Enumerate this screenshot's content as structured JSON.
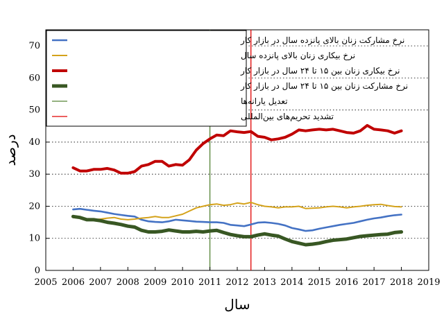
{
  "chart_data": {
    "type": "line",
    "xlabel": "سال",
    "ylabel": "درصد",
    "xlim": [
      2005,
      2019
    ],
    "ylim": [
      0,
      75
    ],
    "x_ticks": [
      2005,
      2006,
      2007,
      2008,
      2009,
      2010,
      2011,
      2012,
      2013,
      2014,
      2015,
      2016,
      2017,
      2018,
      2019
    ],
    "y_ticks": [
      0,
      10,
      20,
      30,
      40,
      50,
      60,
      70
    ],
    "grid": "horizontal-dotted",
    "legend_position": "top-left",
    "series": [
      {
        "name": "نرخ مشارکت زنان بالای پانزده سال در بازار کار",
        "color": "#4472c4",
        "x": [
          2006.0,
          2006.25,
          2006.5,
          2006.75,
          2007.0,
          2007.25,
          2007.5,
          2007.75,
          2008.0,
          2008.25,
          2008.5,
          2008.75,
          2009.0,
          2009.25,
          2009.5,
          2009.75,
          2010.0,
          2010.25,
          2010.5,
          2010.75,
          2011.0,
          2011.25,
          2011.5,
          2011.75,
          2012.0,
          2012.25,
          2012.5,
          2012.75,
          2013.0,
          2013.25,
          2013.5,
          2013.75,
          2014.0,
          2014.25,
          2014.5,
          2014.75,
          2015.0,
          2015.25,
          2015.5,
          2015.75,
          2016.0,
          2016.25,
          2016.5,
          2016.75,
          2017.0,
          2017.25,
          2017.5,
          2017.75,
          2018.0
        ],
        "values": [
          19.0,
          19.2,
          18.9,
          18.6,
          18.4,
          18.0,
          17.6,
          17.3,
          17.0,
          16.8,
          15.8,
          15.3,
          15.1,
          15.0,
          15.3,
          15.8,
          15.6,
          15.4,
          15.2,
          15.1,
          15.0,
          15.0,
          14.8,
          14.2,
          14.0,
          13.8,
          14.3,
          14.9,
          15.0,
          14.8,
          14.5,
          14.0,
          13.2,
          12.8,
          12.3,
          12.5,
          13.0,
          13.4,
          13.8,
          14.2,
          14.5,
          14.8,
          15.3,
          15.8,
          16.2,
          16.5,
          16.9,
          17.2,
          17.4
        ]
      },
      {
        "name": "نرخ بیکاری زنان بالای پانزده سال",
        "color": "#d4a21a",
        "x": [
          2006.0,
          2006.25,
          2006.5,
          2006.75,
          2007.0,
          2007.25,
          2007.5,
          2007.75,
          2008.0,
          2008.25,
          2008.5,
          2008.75,
          2009.0,
          2009.25,
          2009.5,
          2009.75,
          2010.0,
          2010.25,
          2010.5,
          2010.75,
          2011.0,
          2011.25,
          2011.5,
          2011.75,
          2012.0,
          2012.25,
          2012.5,
          2012.75,
          2013.0,
          2013.25,
          2013.5,
          2013.75,
          2014.0,
          2014.25,
          2014.5,
          2014.75,
          2015.0,
          2015.25,
          2015.5,
          2015.75,
          2016.0,
          2016.25,
          2016.5,
          2016.75,
          2017.0,
          2017.25,
          2017.5,
          2017.75,
          2018.0
        ],
        "values": [
          16.5,
          16.3,
          16.0,
          15.8,
          16.0,
          16.3,
          16.5,
          16.0,
          15.8,
          16.0,
          16.3,
          16.5,
          16.8,
          16.5,
          16.5,
          17.0,
          17.5,
          18.5,
          19.5,
          20.0,
          20.5,
          20.7,
          20.3,
          20.5,
          21.0,
          20.7,
          21.2,
          20.5,
          20.0,
          19.8,
          19.5,
          19.8,
          19.8,
          20.0,
          19.3,
          19.4,
          19.5,
          19.8,
          20.0,
          19.8,
          19.5,
          19.8,
          20.0,
          20.3,
          20.5,
          20.6,
          20.2,
          19.9,
          19.8
        ]
      },
      {
        "name": "نرخ بیکاری زنان بین ۱۵ تا ۲۴ سال در بازار کار",
        "color": "#c00000",
        "x": [
          2006.0,
          2006.25,
          2006.5,
          2006.75,
          2007.0,
          2007.25,
          2007.5,
          2007.75,
          2008.0,
          2008.25,
          2008.5,
          2008.75,
          2009.0,
          2009.25,
          2009.5,
          2009.75,
          2010.0,
          2010.25,
          2010.5,
          2010.75,
          2011.0,
          2011.25,
          2011.5,
          2011.75,
          2012.0,
          2012.25,
          2012.5,
          2012.75,
          2013.0,
          2013.25,
          2013.5,
          2013.75,
          2014.0,
          2014.25,
          2014.5,
          2014.75,
          2015.0,
          2015.25,
          2015.5,
          2015.75,
          2016.0,
          2016.25,
          2016.5,
          2016.75,
          2017.0,
          2017.25,
          2017.5,
          2017.75,
          2018.0
        ],
        "values": [
          32.0,
          31.0,
          31.0,
          31.5,
          31.5,
          31.8,
          31.3,
          30.3,
          30.3,
          30.8,
          32.5,
          33.0,
          34.0,
          34.0,
          32.5,
          33.0,
          32.8,
          34.5,
          37.5,
          39.5,
          41.0,
          42.2,
          42.0,
          43.5,
          43.2,
          43.0,
          43.3,
          41.8,
          41.5,
          40.7,
          41.0,
          41.5,
          42.5,
          43.8,
          43.5,
          43.8,
          44.0,
          43.8,
          44.0,
          43.5,
          43.0,
          42.8,
          43.5,
          45.2,
          44.0,
          43.8,
          43.5,
          42.8,
          43.5
        ]
      },
      {
        "name": "نرخ مشارکت زنان بین ۱۵ تا ۲۴ سال در بازار کار",
        "color": "#385723",
        "x": [
          2006.0,
          2006.25,
          2006.5,
          2006.75,
          2007.0,
          2007.25,
          2007.5,
          2007.75,
          2008.0,
          2008.25,
          2008.5,
          2008.75,
          2009.0,
          2009.25,
          2009.5,
          2009.75,
          2010.0,
          2010.25,
          2010.5,
          2010.75,
          2011.0,
          2011.25,
          2011.5,
          2011.75,
          2012.0,
          2012.25,
          2012.5,
          2012.75,
          2013.0,
          2013.25,
          2013.5,
          2013.75,
          2014.0,
          2014.25,
          2014.5,
          2014.75,
          2015.0,
          2015.25,
          2015.5,
          2015.75,
          2016.0,
          2016.25,
          2016.5,
          2016.75,
          2017.0,
          2017.25,
          2017.5,
          2017.75,
          2018.0
        ],
        "values": [
          16.8,
          16.5,
          15.8,
          15.8,
          15.5,
          15.0,
          14.7,
          14.3,
          13.8,
          13.5,
          12.5,
          12.0,
          12.0,
          12.2,
          12.6,
          12.3,
          12.0,
          12.0,
          12.2,
          12.0,
          12.3,
          12.5,
          11.8,
          11.2,
          10.8,
          10.5,
          10.5,
          11.0,
          11.4,
          11.0,
          10.7,
          9.8,
          9.0,
          8.5,
          8.0,
          8.2,
          8.5,
          9.0,
          9.4,
          9.6,
          9.8,
          10.2,
          10.6,
          10.8,
          11.0,
          11.2,
          11.3,
          11.8,
          12.0
        ]
      }
    ],
    "vertical_lines": [
      {
        "name": "تعدیل یارانه‌ها",
        "x": 2011.0,
        "color": "#548235"
      },
      {
        "name": "تشدید تحریم‌های بین‌المللی",
        "x": 2012.5,
        "color": "#e00000"
      }
    ]
  }
}
